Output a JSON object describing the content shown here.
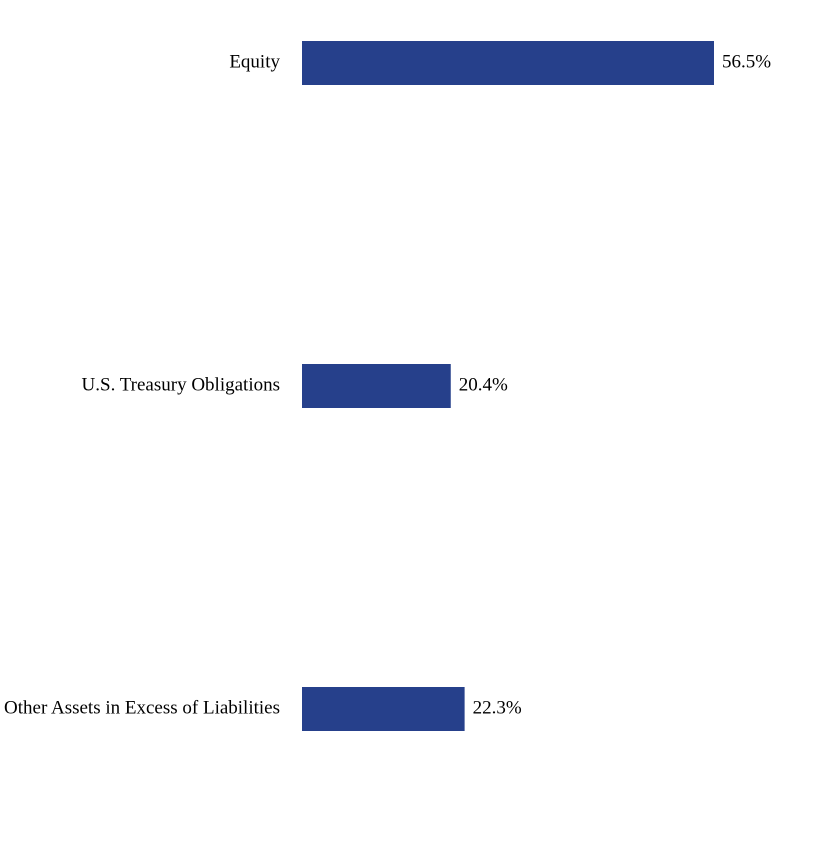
{
  "chart_data": {
    "type": "barh",
    "categories": [
      "Equity",
      "U.S. Treasury Obligations",
      "Other Assets in Excess of Liabilities"
    ],
    "values": [
      56.5,
      20.4,
      22.3
    ],
    "value_labels": [
      "56.5%",
      "20.4%",
      "22.3%"
    ],
    "color": "#26408b"
  }
}
